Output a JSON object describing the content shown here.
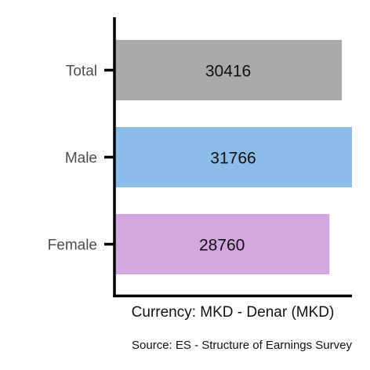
{
  "chart_data": {
    "type": "bar",
    "orientation": "horizontal",
    "categories": [
      "Total",
      "Male",
      "Female"
    ],
    "values": [
      30416,
      31766,
      28760
    ],
    "colors": [
      "#a9a9a9",
      "#8bbde8",
      "#d5a6e0"
    ],
    "xlabel": "Currency: MKD - Denar (MKD)",
    "ylabel": "",
    "caption": "Source:  ES - Structure of Earnings Survey",
    "xlim": [
      0,
      31766
    ],
    "grid": false,
    "legend": "none"
  }
}
